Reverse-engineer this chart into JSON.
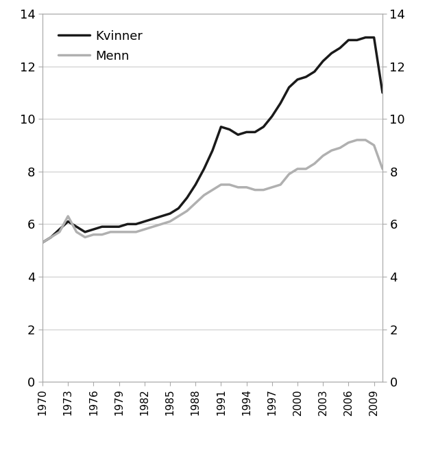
{
  "kvinner": {
    "years": [
      1970,
      1971,
      1972,
      1973,
      1974,
      1975,
      1976,
      1977,
      1978,
      1979,
      1980,
      1981,
      1982,
      1983,
      1984,
      1985,
      1986,
      1987,
      1988,
      1989,
      1990,
      1991,
      1992,
      1993,
      1994,
      1995,
      1996,
      1997,
      1998,
      1999,
      2000,
      2001,
      2002,
      2003,
      2004,
      2005,
      2006,
      2007,
      2008,
      2009,
      2010
    ],
    "values": [
      5.3,
      5.5,
      5.8,
      6.1,
      5.9,
      5.7,
      5.8,
      5.9,
      5.9,
      5.9,
      6.0,
      6.0,
      6.1,
      6.2,
      6.3,
      6.4,
      6.6,
      7.0,
      7.5,
      8.1,
      8.8,
      9.7,
      9.6,
      9.4,
      9.5,
      9.5,
      9.7,
      10.1,
      10.6,
      11.2,
      11.5,
      11.6,
      11.8,
      12.2,
      12.5,
      12.7,
      13.0,
      13.0,
      13.1,
      13.1,
      11.0
    ]
  },
  "menn": {
    "years": [
      1970,
      1971,
      1972,
      1973,
      1974,
      1975,
      1976,
      1977,
      1978,
      1979,
      1980,
      1981,
      1982,
      1983,
      1984,
      1985,
      1986,
      1987,
      1988,
      1989,
      1990,
      1991,
      1992,
      1993,
      1994,
      1995,
      1996,
      1997,
      1998,
      1999,
      2000,
      2001,
      2002,
      2003,
      2004,
      2005,
      2006,
      2007,
      2008,
      2009,
      2010
    ],
    "values": [
      5.3,
      5.5,
      5.7,
      6.3,
      5.7,
      5.5,
      5.6,
      5.6,
      5.7,
      5.7,
      5.7,
      5.7,
      5.8,
      5.9,
      6.0,
      6.1,
      6.3,
      6.5,
      6.8,
      7.1,
      7.3,
      7.5,
      7.5,
      7.4,
      7.4,
      7.3,
      7.3,
      7.4,
      7.5,
      7.9,
      8.1,
      8.1,
      8.3,
      8.6,
      8.8,
      8.9,
      9.1,
      9.2,
      9.2,
      9.0,
      8.1
    ]
  },
  "kvinner_color": "#1a1a1a",
  "menn_color": "#b0b0b0",
  "kvinner_linewidth": 2.5,
  "menn_linewidth": 2.5,
  "ylim": [
    0,
    14
  ],
  "yticks": [
    0,
    2,
    4,
    6,
    8,
    10,
    12,
    14
  ],
  "xlim_start": 1970,
  "xlim_end": 2010,
  "xtick_years": [
    1970,
    1973,
    1976,
    1979,
    1982,
    1985,
    1988,
    1991,
    1994,
    1997,
    2000,
    2003,
    2006,
    2009
  ],
  "legend_kvinner": "Kvinner",
  "legend_menn": "Menn",
  "background_color": "#ffffff",
  "grid_color": "#cccccc",
  "spine_color": "#aaaaaa"
}
